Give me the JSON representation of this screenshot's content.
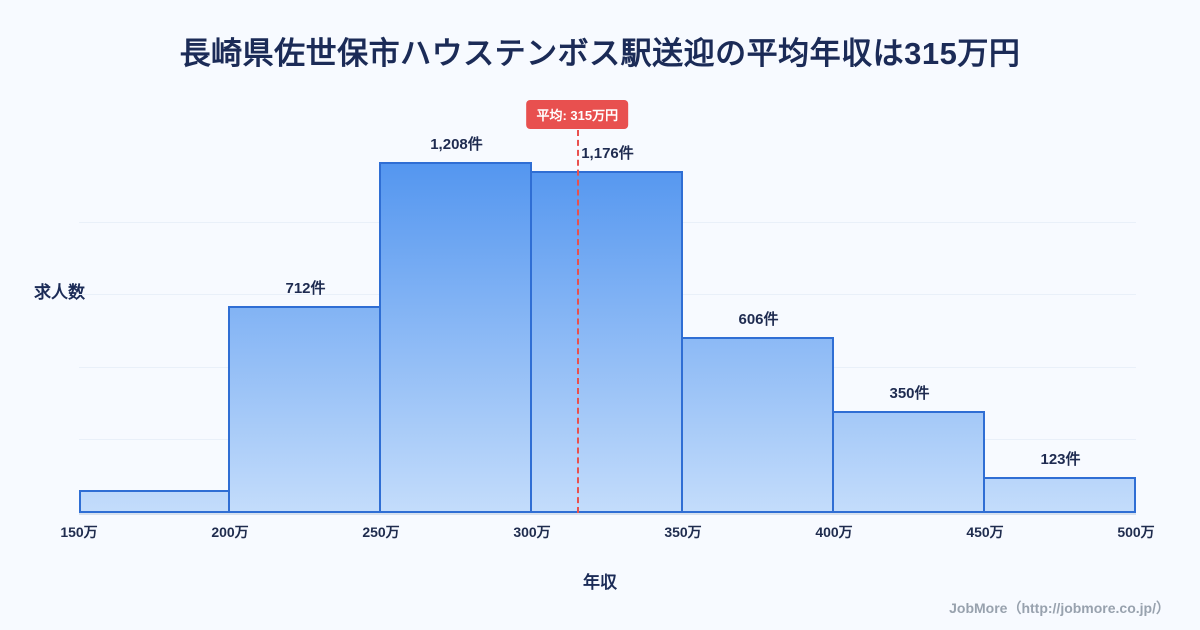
{
  "title": "長崎県佐世保市ハウステンボス駅送迎の平均年収は315万円",
  "footer": "JobMore（http://jobmore.co.jp/）",
  "chart_data": {
    "type": "bar",
    "title": "長崎県佐世保市ハウステンボス駅送迎の平均年収は315万円",
    "xlabel": "年収",
    "ylabel": "求人数",
    "categories": [
      "150万-200万",
      "200万-250万",
      "250万-300万",
      "300万-350万",
      "350万-400万",
      "400万-450万",
      "450万-500万"
    ],
    "values": [
      80,
      712,
      1208,
      1176,
      606,
      350,
      123
    ],
    "bar_labels": [
      "",
      "712件",
      "1,208件",
      "1,176件",
      "606件",
      "350件",
      "123件"
    ],
    "tick_labels": [
      "150万",
      "200万",
      "250万",
      "300万",
      "350万",
      "400万",
      "450万",
      "500万"
    ],
    "x_range": [
      150,
      500
    ],
    "ylim": [
      0,
      1250
    ],
    "grid": "faint horizontal",
    "average_value": 315,
    "average_label": "平均: 315万円",
    "colors": {
      "background": "#f7faff",
      "bar_gradient_top": "#4f93ef",
      "bar_gradient_bottom": "#c3dcfb",
      "bar_border": "#2f6ed4",
      "average_line": "#e8504f",
      "title_text": "#1b2b57",
      "footer_text": "#98a2ae"
    }
  }
}
